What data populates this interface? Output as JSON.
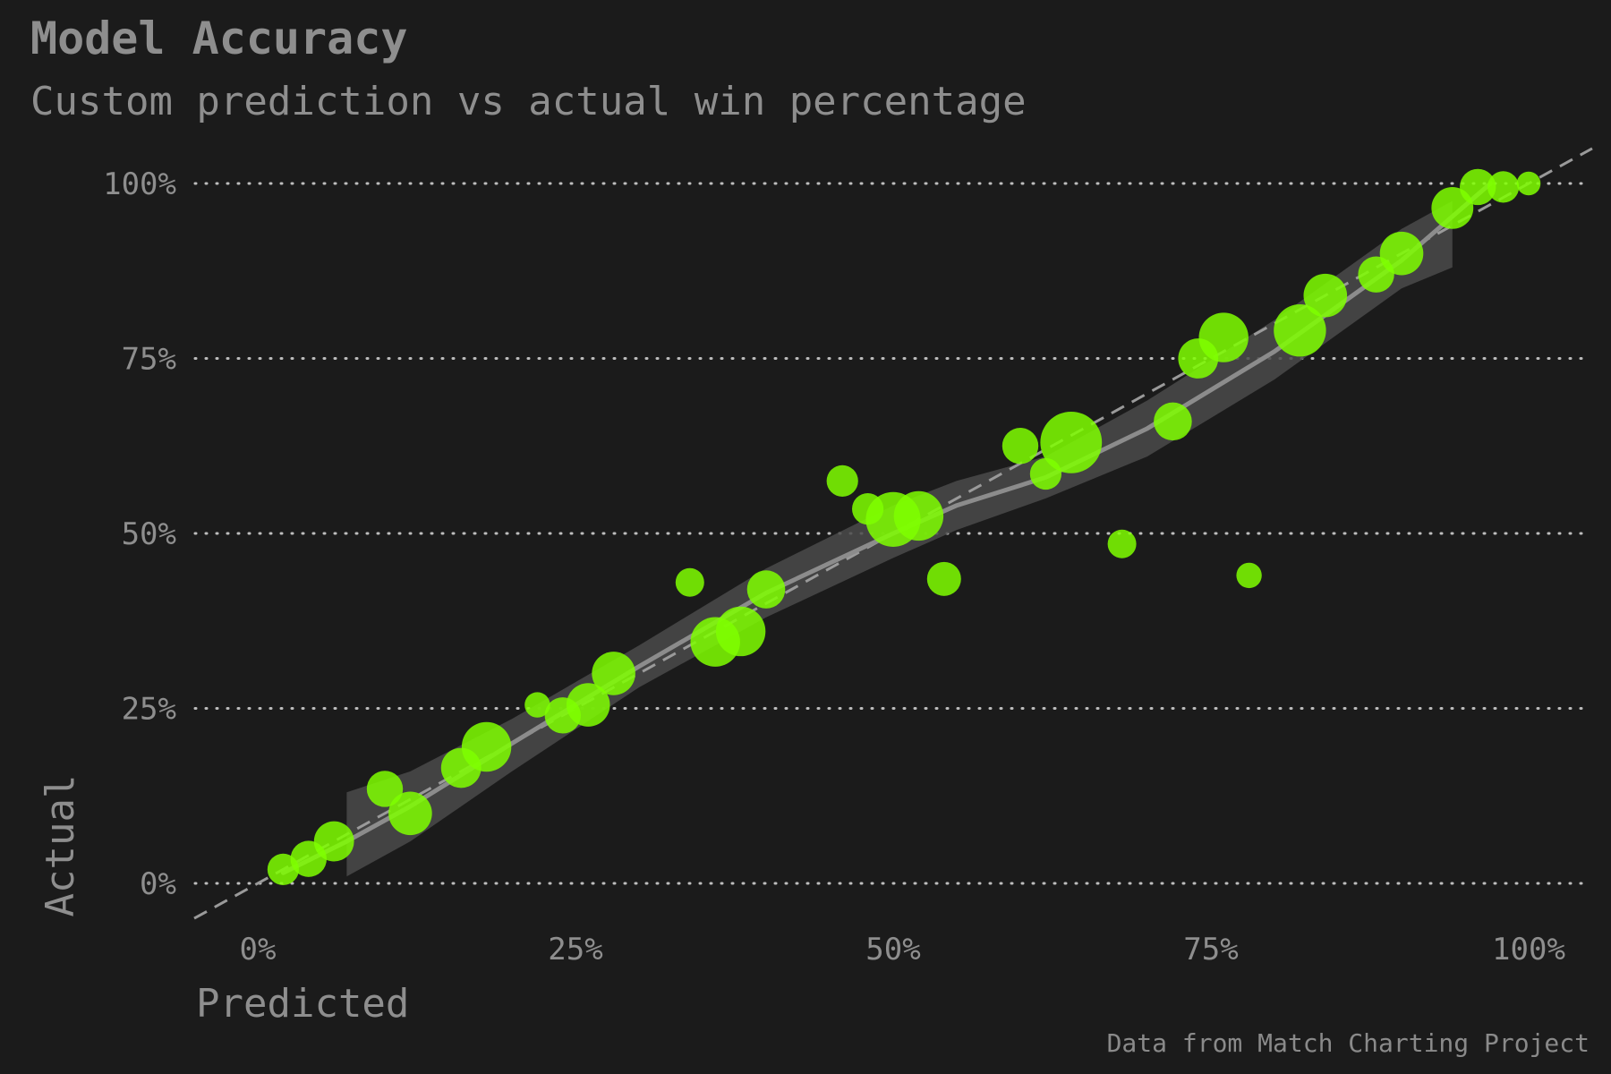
{
  "title": "Model Accuracy",
  "subtitle": "Custom prediction vs actual win percentage",
  "caption": "Data from Match Charting Project",
  "chart_data": {
    "type": "scatter",
    "title": "Model Accuracy",
    "subtitle": "Custom prediction vs actual win percentage",
    "xlabel": "Predicted",
    "ylabel": "Actual",
    "xlim": [
      -5,
      105
    ],
    "ylim": [
      -5,
      105
    ],
    "x_ticks": [
      0,
      25,
      50,
      75,
      100
    ],
    "x_tick_labels": [
      "0%",
      "25%",
      "50%",
      "75%",
      "100%"
    ],
    "y_ticks": [
      0,
      25,
      50,
      75,
      100
    ],
    "y_tick_labels": [
      "0%",
      "25%",
      "50%",
      "75%",
      "100%"
    ],
    "grid": "horizontal-dotted",
    "legend": "none",
    "reference_line": "y = x (dashed)",
    "colors": {
      "background": "#1b1b1b",
      "point": "#7fff00",
      "trend_line": "#8c8c8c",
      "confidence_band": "#4a4a4a",
      "grid": "#bdbdbd",
      "text": "#8e8e8e"
    },
    "points": [
      {
        "x": 2,
        "y": 2,
        "n": 2
      },
      {
        "x": 4,
        "y": 3.5,
        "n": 3
      },
      {
        "x": 6,
        "y": 6,
        "n": 4
      },
      {
        "x": 10,
        "y": 13.5,
        "n": 3
      },
      {
        "x": 12,
        "y": 10,
        "n": 5
      },
      {
        "x": 16,
        "y": 16.5,
        "n": 4
      },
      {
        "x": 18,
        "y": 19.5,
        "n": 7
      },
      {
        "x": 22,
        "y": 25.5,
        "n": 1
      },
      {
        "x": 24,
        "y": 24,
        "n": 3
      },
      {
        "x": 26,
        "y": 25.5,
        "n": 5
      },
      {
        "x": 28,
        "y": 30,
        "n": 5
      },
      {
        "x": 34,
        "y": 43,
        "n": 1.5
      },
      {
        "x": 36,
        "y": 34.5,
        "n": 7
      },
      {
        "x": 38,
        "y": 36,
        "n": 7
      },
      {
        "x": 40,
        "y": 42,
        "n": 3.5
      },
      {
        "x": 46,
        "y": 57.5,
        "n": 2
      },
      {
        "x": 48,
        "y": 53.5,
        "n": 2
      },
      {
        "x": 50,
        "y": 52,
        "n": 9
      },
      {
        "x": 52,
        "y": 52.5,
        "n": 7
      },
      {
        "x": 54,
        "y": 43.5,
        "n": 2.5
      },
      {
        "x": 60,
        "y": 62.5,
        "n": 3
      },
      {
        "x": 62,
        "y": 58.5,
        "n": 2
      },
      {
        "x": 64,
        "y": 63,
        "n": 12
      },
      {
        "x": 68,
        "y": 48.5,
        "n": 1.5
      },
      {
        "x": 72,
        "y": 66,
        "n": 3.5
      },
      {
        "x": 74,
        "y": 75,
        "n": 4
      },
      {
        "x": 76,
        "y": 78,
        "n": 7
      },
      {
        "x": 78,
        "y": 44,
        "n": 1
      },
      {
        "x": 82,
        "y": 79,
        "n": 8
      },
      {
        "x": 84,
        "y": 84,
        "n": 5
      },
      {
        "x": 88,
        "y": 87,
        "n": 3
      },
      {
        "x": 90,
        "y": 90,
        "n": 5
      },
      {
        "x": 94,
        "y": 96.5,
        "n": 4.5
      },
      {
        "x": 96,
        "y": 99.5,
        "n": 3
      },
      {
        "x": 98,
        "y": 99.5,
        "n": 2
      },
      {
        "x": 100,
        "y": 100,
        "n": 0.8
      }
    ],
    "trend": {
      "x": [
        2,
        7,
        12,
        20,
        30,
        40,
        50,
        55,
        62,
        70,
        80,
        90,
        97
      ],
      "y": [
        1.5,
        6,
        11,
        20,
        31,
        41.5,
        50,
        54,
        58,
        65,
        76,
        89,
        100
      ]
    },
    "band": {
      "x": [
        7,
        12,
        20,
        30,
        40,
        50,
        55,
        62,
        70,
        80,
        90,
        94
      ],
      "upper": [
        13,
        16,
        23.5,
        34,
        45,
        54,
        57.5,
        61,
        69,
        80.5,
        93.5,
        97.5
      ],
      "lower": [
        1,
        6,
        16,
        28,
        38,
        46.5,
        50.5,
        55,
        61,
        72,
        85,
        88
      ]
    }
  }
}
